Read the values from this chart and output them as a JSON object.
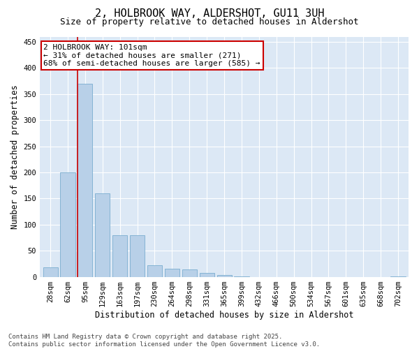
{
  "title": "2, HOLBROOK WAY, ALDERSHOT, GU11 3UH",
  "subtitle": "Size of property relative to detached houses in Aldershot",
  "xlabel": "Distribution of detached houses by size in Aldershot",
  "ylabel": "Number of detached properties",
  "categories": [
    "28sqm",
    "62sqm",
    "95sqm",
    "129sqm",
    "163sqm",
    "197sqm",
    "230sqm",
    "264sqm",
    "298sqm",
    "331sqm",
    "365sqm",
    "399sqm",
    "432sqm",
    "466sqm",
    "500sqm",
    "534sqm",
    "567sqm",
    "601sqm",
    "635sqm",
    "668sqm",
    "702sqm"
  ],
  "values": [
    18,
    200,
    370,
    160,
    80,
    80,
    22,
    16,
    14,
    7,
    4,
    1,
    0,
    0,
    0,
    0,
    0,
    0,
    0,
    0,
    1
  ],
  "bar_color": "#b8d0e8",
  "bar_edgecolor": "#7aadcf",
  "vline_color": "#cc0000",
  "annotation_text": "2 HOLBROOK WAY: 101sqm\n← 31% of detached houses are smaller (271)\n68% of semi-detached houses are larger (585) →",
  "annotation_box_edgecolor": "#cc0000",
  "ylim": [
    0,
    460
  ],
  "yticks": [
    0,
    50,
    100,
    150,
    200,
    250,
    300,
    350,
    400,
    450
  ],
  "plot_bg_color": "#dce8f5",
  "footer": "Contains HM Land Registry data © Crown copyright and database right 2025.\nContains public sector information licensed under the Open Government Licence v3.0.",
  "title_fontsize": 11,
  "subtitle_fontsize": 9,
  "tick_fontsize": 7.5,
  "xlabel_fontsize": 8.5,
  "ylabel_fontsize": 8.5,
  "annotation_fontsize": 8,
  "footer_fontsize": 6.5
}
